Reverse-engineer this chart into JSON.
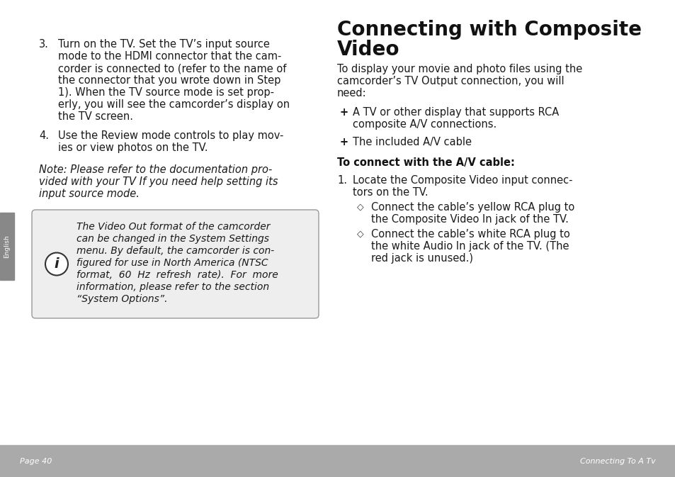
{
  "bg_color": "#ffffff",
  "footer_color": "#aaaaaa",
  "sidebar_color": "#888888",
  "sidebar_text": "English",
  "footer_left": "Page 40",
  "footer_right": "Connecting To A Tv",
  "left_col": {
    "item3": "Turn on the TV. Set the TV’s input source mode to the HDMI connector that the camcorder is connected to (refer to the name of the connector that you wrote down in Step 1). When the TV source mode is set properly, you will see the camcorder’s display on the TV screen.",
    "item4": "Use the Review mode controls to play movies or view photos on the TV.",
    "note": "Note: Please refer to the documentation provided with your TV If you need help setting its input source mode.",
    "info_box": "The Video Out format of the camcorder can be changed in the System Settings menu. By default, the camcorder is con-figured for use in North America (NTSC format,  60  Hz  refresh  rate).  For  more information, please refer to the section “System Options”."
  },
  "right_col": {
    "title_line1": "Connecting with Composite",
    "title_line2": "Video",
    "intro": "To display your movie and photo files using the camcorder’s TV Output connection, you will need:",
    "bullet1_line1": "A TV or other display that supports RCA",
    "bullet1_line2": "composite A/V connections.",
    "bullet2": "The included A/V cable",
    "subheading": "To connect with the A/V cable:",
    "step1_line1": "Locate the Composite Video input connec-",
    "step1_line2": "tors on the TV.",
    "sub_bullet1_line1": "Connect the cable’s yellow RCA plug to",
    "sub_bullet1_line2": "the Composite Video In jack of the TV.",
    "sub_bullet2_line1": "Connect the cable’s white RCA plug to",
    "sub_bullet2_line2": "the white Audio In jack of the TV. (The",
    "sub_bullet2_line3": "red jack is unused.)"
  }
}
